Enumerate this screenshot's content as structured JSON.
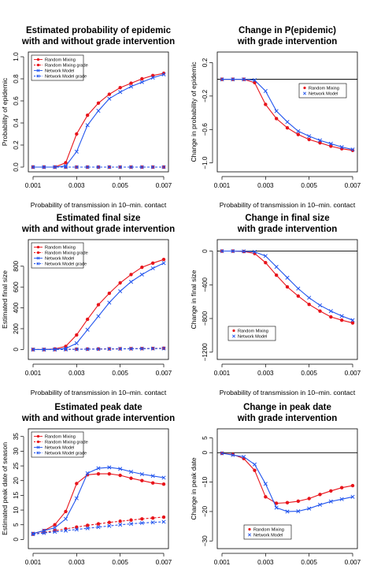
{
  "figure": {
    "colors": {
      "random": "#e8141b",
      "network": "#2255ee",
      "axis": "#000000"
    }
  },
  "chart_data": [
    {
      "type": "line",
      "title": [
        "Estimated probability of epidemic",
        "with and without grade intervention"
      ],
      "xlabel": "Probability of transmission in 10–min. contact",
      "ylabel": "Probability of epidemic",
      "xlim": [
        0.001,
        0.007
      ],
      "ylim": [
        0.0,
        1.0
      ],
      "xticks": [
        "0.001",
        "0.003",
        "0.005",
        "0.007"
      ],
      "yticks": [
        "0.0",
        "0.2",
        "0.4",
        "0.6",
        "0.8",
        "1.0"
      ],
      "reference_line": null,
      "legend": {
        "position": "top-left"
      },
      "x": [
        0.001,
        0.0015,
        0.002,
        0.0025,
        0.003,
        0.0035,
        0.004,
        0.0045,
        0.005,
        0.0055,
        0.006,
        0.0065,
        0.007
      ],
      "series": [
        {
          "name": "Random Mixing",
          "color": "#e8141b",
          "marker": "dot",
          "dash": false,
          "values": [
            0.0,
            0.0,
            0.0,
            0.04,
            0.3,
            0.47,
            0.58,
            0.66,
            0.72,
            0.76,
            0.8,
            0.83,
            0.85
          ]
        },
        {
          "name": "Random Mixing grade",
          "color": "#e8141b",
          "marker": "dot",
          "dash": true,
          "values": [
            0.0,
            0.0,
            0.0,
            0.0,
            0.0,
            0.0,
            0.0,
            0.0,
            0.0,
            0.0,
            0.0,
            0.0,
            0.0
          ]
        },
        {
          "name": "Network Model",
          "color": "#2255ee",
          "marker": "x",
          "dash": false,
          "values": [
            0.0,
            0.0,
            0.0,
            0.01,
            0.14,
            0.38,
            0.51,
            0.62,
            0.68,
            0.73,
            0.77,
            0.81,
            0.84
          ]
        },
        {
          "name": "Network Model grade",
          "color": "#2255ee",
          "marker": "x",
          "dash": true,
          "values": [
            0.0,
            0.0,
            0.0,
            0.0,
            0.0,
            0.0,
            0.0,
            0.0,
            0.0,
            0.0,
            0.0,
            0.0,
            0.0
          ]
        }
      ]
    },
    {
      "type": "line",
      "title": [
        "Change in P(epidemic)",
        "with grade intervention"
      ],
      "xlabel": "Probability of transmission in 10–min. contact",
      "ylabel": "Change in probability of epidemic",
      "xlim": [
        0.001,
        0.007
      ],
      "ylim": [
        -1.05,
        0.27
      ],
      "xticks": [
        "0.001",
        "0.003",
        "0.005",
        "0.007"
      ],
      "yticks": [
        "0.2",
        "−0.2",
        "−0.6",
        "−1.0"
      ],
      "yticks_values": [
        0.2,
        -0.2,
        -0.6,
        -1.0
      ],
      "reference_line": 0,
      "legend": {
        "position": "right"
      },
      "x": [
        0.001,
        0.0015,
        0.002,
        0.0025,
        0.003,
        0.0035,
        0.004,
        0.0045,
        0.005,
        0.0055,
        0.006,
        0.0065,
        0.007
      ],
      "series": [
        {
          "name": "Random Mixing",
          "color": "#e8141b",
          "marker": "dot",
          "dash": false,
          "values": [
            0.0,
            0.0,
            0.0,
            -0.04,
            -0.3,
            -0.47,
            -0.58,
            -0.66,
            -0.72,
            -0.76,
            -0.8,
            -0.83,
            -0.85
          ]
        },
        {
          "name": "Network Model",
          "color": "#2255ee",
          "marker": "x",
          "dash": false,
          "values": [
            0.0,
            0.0,
            0.0,
            -0.01,
            -0.14,
            -0.38,
            -0.51,
            -0.62,
            -0.68,
            -0.73,
            -0.77,
            -0.81,
            -0.84
          ]
        }
      ]
    },
    {
      "type": "line",
      "title": [
        "Estimated final size",
        "with and without grade intervention"
      ],
      "xlabel": "Probability of transmission in 10–min. contact",
      "ylabel": "Estimated final size",
      "xlim": [
        0.001,
        0.007
      ],
      "ylim": [
        -50,
        1010
      ],
      "xticks": [
        "0.001",
        "0.003",
        "0.005",
        "0.007"
      ],
      "yticks": [
        "0",
        "200",
        "400",
        "600",
        "800"
      ],
      "yticks_values": [
        0,
        200,
        400,
        600,
        800
      ],
      "reference_line": null,
      "legend": {
        "position": "top-left"
      },
      "x": [
        0.001,
        0.0015,
        0.002,
        0.0025,
        0.003,
        0.0035,
        0.004,
        0.0045,
        0.005,
        0.0055,
        0.006,
        0.0065,
        0.007
      ],
      "series": [
        {
          "name": "Random Mixing",
          "color": "#e8141b",
          "marker": "dot",
          "dash": false,
          "values": [
            0,
            0,
            5,
            30,
            140,
            290,
            430,
            540,
            640,
            720,
            790,
            830,
            865
          ]
        },
        {
          "name": "Random Mixing grade",
          "color": "#e8141b",
          "marker": "dot",
          "dash": true,
          "values": [
            0,
            0,
            0,
            2,
            3,
            4,
            5,
            6,
            7,
            8,
            9,
            10,
            12
          ]
        },
        {
          "name": "Network Model",
          "color": "#2255ee",
          "marker": "x",
          "dash": false,
          "values": [
            0,
            0,
            2,
            10,
            60,
            190,
            320,
            450,
            560,
            650,
            720,
            780,
            830
          ]
        },
        {
          "name": "Network Model grade",
          "color": "#2255ee",
          "marker": "x",
          "dash": true,
          "values": [
            0,
            0,
            0,
            1,
            2,
            3,
            4,
            5,
            6,
            7,
            8,
            9,
            10
          ]
        }
      ]
    },
    {
      "type": "line",
      "title": [
        "Change in final size",
        "with grade intervention"
      ],
      "xlabel": "Probability of transmission in 10–min. contact",
      "ylabel": "Change in final size",
      "xlim": [
        0.001,
        0.007
      ],
      "ylim": [
        -1230,
        80
      ],
      "xticks": [
        "0.001",
        "0.003",
        "0.005",
        "0.007"
      ],
      "yticks": [
        "0",
        "−400",
        "−800",
        "−1200"
      ],
      "yticks_values": [
        0,
        -400,
        -800,
        -1200
      ],
      "reference_line": 0,
      "legend": {
        "position": "bottom-left"
      },
      "x": [
        0.001,
        0.0015,
        0.002,
        0.0025,
        0.003,
        0.0035,
        0.004,
        0.0045,
        0.005,
        0.0055,
        0.006,
        0.0065,
        0.007
      ],
      "series": [
        {
          "name": "Random Mixing",
          "color": "#e8141b",
          "marker": "dot",
          "dash": false,
          "values": [
            0,
            0,
            -5,
            -28,
            -137,
            -286,
            -425,
            -534,
            -633,
            -712,
            -781,
            -820,
            -853
          ]
        },
        {
          "name": "Network Model",
          "color": "#2255ee",
          "marker": "x",
          "dash": false,
          "values": [
            0,
            0,
            -2,
            -9,
            -58,
            -187,
            -316,
            -445,
            -554,
            -643,
            -712,
            -771,
            -820
          ]
        }
      ]
    },
    {
      "type": "line",
      "title": [
        "Estimated peak date",
        "with and without grade intervention"
      ],
      "xlabel": "Probability of transmission in 10–min. contact",
      "ylabel": "Estimated peak date of season",
      "xlim": [
        0.001,
        0.007
      ],
      "ylim": [
        -1.5,
        36
      ],
      "xticks": [
        "0.001",
        "0.003",
        "0.005",
        "0.007"
      ],
      "yticks": [
        "0",
        "5",
        "10",
        "15",
        "20",
        "25",
        "30",
        "35"
      ],
      "yticks_values": [
        0,
        5,
        10,
        15,
        20,
        25,
        30,
        35
      ],
      "reference_line": null,
      "legend": {
        "position": "top-left"
      },
      "x": [
        0.001,
        0.0015,
        0.002,
        0.0025,
        0.003,
        0.0035,
        0.004,
        0.0045,
        0.005,
        0.0055,
        0.006,
        0.0065,
        0.007
      ],
      "series": [
        {
          "name": "Random Mixing",
          "color": "#e8141b",
          "marker": "dot",
          "dash": false,
          "values": [
            2,
            3,
            5,
            9.5,
            19,
            22,
            22.3,
            22.3,
            21.8,
            20.8,
            20,
            19.2,
            18.8
          ]
        },
        {
          "name": "Random Mixing grade",
          "color": "#e8141b",
          "marker": "dot",
          "dash": true,
          "values": [
            1.8,
            2.4,
            3.0,
            3.6,
            4.2,
            4.8,
            5.3,
            5.8,
            6.2,
            6.6,
            7.0,
            7.3,
            7.6
          ]
        },
        {
          "name": "Network Model",
          "color": "#2255ee",
          "marker": "x",
          "dash": false,
          "values": [
            2,
            3,
            4,
            7,
            14,
            22.5,
            24.2,
            24.5,
            24,
            23,
            22.2,
            21.6,
            21
          ]
        },
        {
          "name": "Network Model grade",
          "color": "#2255ee",
          "marker": "x",
          "dash": true,
          "values": [
            1.8,
            2.2,
            2.6,
            3.0,
            3.4,
            3.8,
            4.2,
            4.6,
            5.0,
            5.3,
            5.6,
            5.8,
            6.0
          ]
        }
      ]
    },
    {
      "type": "line",
      "title": [
        "Change in peak date",
        "with grade intervention"
      ],
      "xlabel": "Probability of transmission in 10–min. contact",
      "ylabel": "Change in peak date",
      "xlim": [
        0.001,
        0.007
      ],
      "ylim": [
        -31,
        6.5
      ],
      "xticks": [
        "0.001",
        "0.003",
        "0.005",
        "0.007"
      ],
      "yticks": [
        "5",
        "0",
        "−10",
        "−20",
        "−30"
      ],
      "yticks_values": [
        5,
        0,
        -10,
        -20,
        -30
      ],
      "reference_line": 0,
      "legend": {
        "position": "bottom-center"
      },
      "x": [
        0.001,
        0.0015,
        0.002,
        0.0025,
        0.003,
        0.0035,
        0.004,
        0.0045,
        0.005,
        0.0055,
        0.006,
        0.0065,
        0.007
      ],
      "series": [
        {
          "name": "Random Mixing",
          "color": "#e8141b",
          "marker": "dot",
          "dash": false,
          "values": [
            -0.2,
            -0.6,
            -2,
            -6,
            -15,
            -17.2,
            -17,
            -16.5,
            -15.6,
            -14.2,
            -13,
            -11.9,
            -11.2
          ]
        },
        {
          "name": "Network Model",
          "color": "#2255ee",
          "marker": "x",
          "dash": false,
          "values": [
            -0.2,
            -0.8,
            -1.4,
            -4,
            -10.6,
            -18.7,
            -20,
            -19.9,
            -19,
            -17.7,
            -16.6,
            -15.8,
            -15
          ]
        }
      ]
    }
  ]
}
